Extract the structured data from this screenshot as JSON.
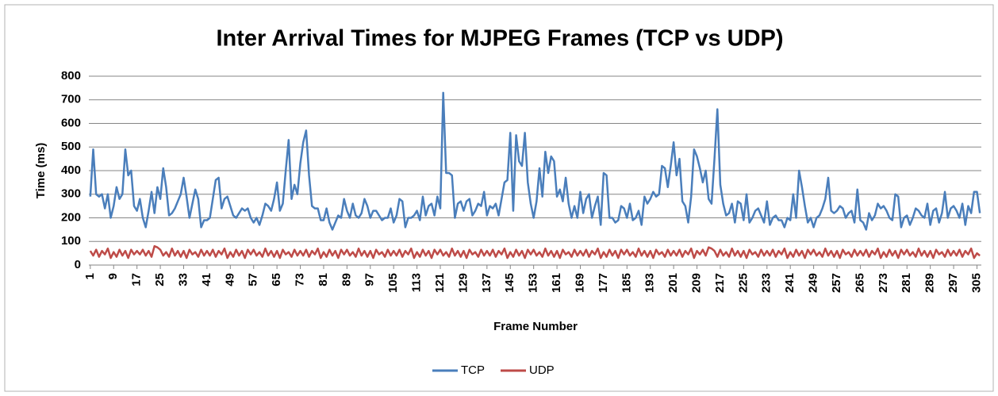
{
  "chart_data": {
    "type": "line",
    "title": "Inter Arrival Times for MJPEG Frames (TCP vs UDP)",
    "x_label": "Frame Number",
    "y_label": "Time (ms)",
    "x": [
      1,
      2,
      3,
      4,
      5,
      6,
      7,
      8,
      9,
      10,
      11,
      12,
      13,
      14,
      15,
      16,
      17,
      18,
      19,
      20,
      21,
      22,
      23,
      24,
      25,
      26,
      27,
      28,
      29,
      30,
      31,
      32,
      33,
      34,
      35,
      36,
      37,
      38,
      39,
      40,
      41,
      42,
      43,
      44,
      45,
      46,
      47,
      48,
      49,
      50,
      51,
      52,
      53,
      54,
      55,
      56,
      57,
      58,
      59,
      60,
      61,
      62,
      63,
      64,
      65,
      66,
      67,
      68,
      69,
      70,
      71,
      72,
      73,
      74,
      75,
      76,
      77,
      78,
      79,
      80,
      81,
      82,
      83,
      84,
      85,
      86,
      87,
      88,
      89,
      90,
      91,
      92,
      93,
      94,
      95,
      96,
      97,
      98,
      99,
      100,
      101,
      102,
      103,
      104,
      105,
      106,
      107,
      108,
      109,
      110,
      111,
      112,
      113,
      114,
      115,
      116,
      117,
      118,
      119,
      120,
      121,
      122,
      123,
      124,
      125,
      126,
      127,
      128,
      129,
      130,
      131,
      132,
      133,
      134,
      135,
      136,
      137,
      138,
      139,
      140,
      141,
      142,
      143,
      144,
      145,
      146,
      147,
      148,
      149,
      150,
      151,
      152,
      153,
      154,
      155,
      156,
      157,
      158,
      159,
      160,
      161,
      162,
      163,
      164,
      165,
      166,
      167,
      168,
      169,
      170,
      171,
      172,
      173,
      174,
      175,
      176,
      177,
      178,
      179,
      180,
      181,
      182,
      183,
      184,
      185,
      186,
      187,
      188,
      189,
      190,
      191,
      192,
      193,
      194,
      195,
      196,
      197,
      198,
      199,
      200,
      201,
      202,
      203,
      204,
      205,
      206,
      207,
      208,
      209,
      210,
      211,
      212,
      213,
      214,
      215,
      216,
      217,
      218,
      219,
      220,
      221,
      222,
      223,
      224,
      225,
      226,
      227,
      228,
      229,
      230,
      231,
      232,
      233,
      234,
      235,
      236,
      237,
      238,
      239,
      240,
      241,
      242,
      243,
      244,
      245,
      246,
      247,
      248,
      249,
      250,
      251,
      252,
      253,
      254,
      255,
      256,
      257,
      258,
      259,
      260,
      261,
      262,
      263,
      264,
      265,
      266,
      267,
      268,
      269,
      270,
      271,
      272,
      273,
      274,
      275,
      276,
      277,
      278,
      279,
      280,
      281,
      282,
      283,
      284,
      285,
      286,
      287,
      288,
      289,
      290,
      291,
      292,
      293,
      294,
      295,
      296,
      297,
      298,
      299,
      300,
      301,
      302,
      303,
      304,
      305,
      306
    ],
    "xlim": [
      0.5,
      306.5
    ],
    "xticks": [
      1,
      9,
      17,
      25,
      33,
      41,
      49,
      57,
      65,
      73,
      81,
      89,
      97,
      105,
      113,
      121,
      129,
      137,
      145,
      153,
      161,
      169,
      177,
      185,
      193,
      201,
      209,
      217,
      225,
      233,
      241,
      249,
      257,
      265,
      273,
      281,
      289,
      297,
      305
    ],
    "ylim": [
      0,
      800
    ],
    "yticks": [
      0,
      100,
      200,
      300,
      400,
      500,
      600,
      700,
      800
    ],
    "grid": true,
    "legend": "bottom",
    "series": [
      {
        "name": "TCP",
        "color": "#4a7ebb",
        "values": [
          290,
          490,
          300,
          290,
          300,
          240,
          300,
          200,
          250,
          330,
          280,
          300,
          490,
          380,
          400,
          250,
          230,
          280,
          200,
          160,
          230,
          310,
          220,
          330,
          280,
          410,
          330,
          210,
          220,
          240,
          270,
          300,
          370,
          290,
          200,
          260,
          320,
          280,
          160,
          190,
          190,
          200,
          280,
          360,
          370,
          240,
          280,
          290,
          250,
          210,
          200,
          220,
          240,
          230,
          240,
          200,
          180,
          200,
          170,
          210,
          260,
          250,
          230,
          280,
          350,
          230,
          260,
          400,
          530,
          280,
          340,
          300,
          430,
          520,
          570,
          380,
          250,
          240,
          240,
          190,
          190,
          240,
          180,
          150,
          180,
          210,
          200,
          280,
          230,
          200,
          260,
          210,
          200,
          220,
          280,
          250,
          200,
          230,
          230,
          210,
          190,
          200,
          200,
          240,
          180,
          210,
          280,
          270,
          160,
          200,
          200,
          210,
          230,
          190,
          290,
          210,
          250,
          260,
          210,
          290,
          240,
          730,
          390,
          390,
          380,
          200,
          260,
          270,
          230,
          270,
          280,
          210,
          230,
          260,
          250,
          310,
          210,
          250,
          240,
          260,
          210,
          280,
          350,
          360,
          560,
          230,
          550,
          440,
          420,
          560,
          350,
          260,
          200,
          270,
          410,
          290,
          480,
          390,
          460,
          440,
          290,
          320,
          270,
          370,
          260,
          200,
          250,
          200,
          310,
          220,
          280,
          300,
          200,
          250,
          290,
          170,
          390,
          380,
          200,
          200,
          180,
          190,
          250,
          240,
          200,
          260,
          190,
          200,
          230,
          170,
          290,
          260,
          280,
          310,
          290,
          300,
          420,
          410,
          330,
          420,
          520,
          380,
          450,
          270,
          250,
          180,
          290,
          490,
          460,
          410,
          350,
          400,
          280,
          260,
          450,
          660,
          340,
          260,
          210,
          220,
          260,
          180,
          270,
          260,
          190,
          300,
          180,
          200,
          230,
          240,
          210,
          180,
          270,
          170,
          200,
          210,
          190,
          190,
          160,
          200,
          190,
          300,
          200,
          400,
          330,
          250,
          180,
          200,
          160,
          200,
          210,
          240,
          280,
          370,
          230,
          220,
          230,
          250,
          240,
          200,
          220,
          230,
          180,
          320,
          190,
          180,
          150,
          220,
          190,
          210,
          260,
          240,
          250,
          230,
          200,
          190,
          300,
          290,
          160,
          200,
          210,
          170,
          200,
          240,
          230,
          210,
          200,
          260,
          170,
          230,
          240,
          180,
          220,
          310,
          200,
          240,
          250,
          230,
          200,
          260,
          170,
          250,
          220,
          310,
          310,
          220
        ]
      },
      {
        "name": "UDP",
        "color": "#be4b48",
        "values": [
          60,
          40,
          65,
          35,
          60,
          45,
          70,
          30,
          55,
          35,
          65,
          40,
          60,
          30,
          65,
          45,
          60,
          45,
          65,
          40,
          60,
          35,
          80,
          75,
          65,
          40,
          55,
          35,
          70,
          40,
          60,
          35,
          60,
          30,
          65,
          45,
          55,
          35,
          65,
          40,
          60,
          40,
          65,
          35,
          60,
          45,
          70,
          30,
          55,
          35,
          65,
          40,
          60,
          30,
          65,
          45,
          65,
          40,
          55,
          35,
          70,
          40,
          60,
          35,
          60,
          30,
          65,
          45,
          55,
          35,
          65,
          40,
          60,
          40,
          65,
          35,
          60,
          45,
          70,
          30,
          55,
          35,
          65,
          40,
          60,
          30,
          65,
          45,
          65,
          40,
          55,
          35,
          70,
          40,
          60,
          35,
          60,
          30,
          65,
          45,
          55,
          35,
          65,
          40,
          60,
          40,
          65,
          35,
          60,
          45,
          70,
          30,
          55,
          35,
          65,
          40,
          60,
          30,
          65,
          45,
          65,
          40,
          55,
          35,
          70,
          40,
          60,
          35,
          60,
          30,
          65,
          45,
          55,
          35,
          65,
          40,
          60,
          40,
          65,
          35,
          60,
          45,
          70,
          30,
          55,
          35,
          65,
          40,
          60,
          30,
          65,
          45,
          65,
          40,
          55,
          35,
          70,
          40,
          60,
          35,
          60,
          30,
          65,
          45,
          55,
          35,
          65,
          40,
          60,
          40,
          65,
          35,
          60,
          45,
          70,
          30,
          55,
          35,
          65,
          40,
          60,
          30,
          65,
          45,
          65,
          40,
          55,
          35,
          70,
          40,
          60,
          35,
          60,
          30,
          65,
          45,
          55,
          35,
          65,
          40,
          60,
          40,
          65,
          35,
          60,
          45,
          70,
          30,
          60,
          45,
          65,
          40,
          75,
          70,
          60,
          35,
          65,
          40,
          55,
          35,
          70,
          40,
          60,
          35,
          60,
          30,
          65,
          45,
          55,
          35,
          65,
          40,
          60,
          40,
          65,
          35,
          60,
          45,
          70,
          30,
          55,
          35,
          65,
          40,
          60,
          30,
          65,
          45,
          65,
          40,
          55,
          35,
          70,
          40,
          60,
          35,
          60,
          30,
          65,
          45,
          55,
          35,
          65,
          40,
          60,
          40,
          65,
          35,
          60,
          45,
          70,
          30,
          55,
          35,
          65,
          40,
          60,
          30,
          65,
          45,
          65,
          40,
          55,
          35,
          70,
          40,
          60,
          35,
          60,
          30,
          65,
          45,
          55,
          35,
          65,
          40,
          60,
          40,
          65,
          35,
          60,
          45,
          70,
          30,
          50,
          40
        ]
      }
    ]
  }
}
